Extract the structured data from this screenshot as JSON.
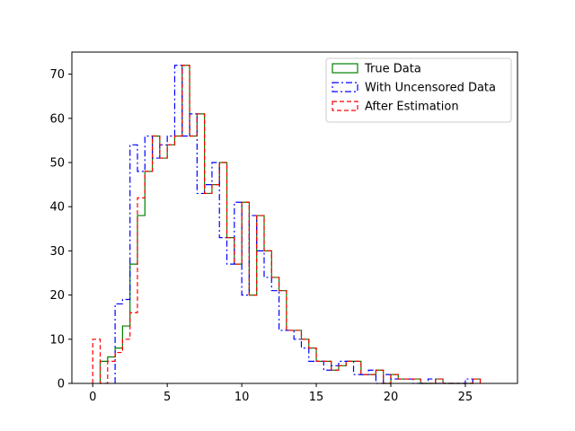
{
  "chart_data": {
    "type": "histogram",
    "title": "",
    "xlabel": "",
    "ylabel": "",
    "xlim": [
      -1.4,
      28.5
    ],
    "ylim": [
      0,
      75
    ],
    "xticks": [
      0,
      5,
      10,
      15,
      20,
      25
    ],
    "yticks": [
      0,
      10,
      20,
      30,
      40,
      50,
      60,
      70
    ],
    "grid": false,
    "legend_position": "top-right",
    "bin_start": 0.0,
    "bin_width": 0.5,
    "series": [
      {
        "name": "True Data",
        "color": "#008000",
        "dash": "solid",
        "start_bin": 1,
        "values": [
          5,
          6,
          8,
          13,
          27,
          38,
          48,
          56,
          51,
          54,
          56,
          72,
          56,
          61,
          43,
          45,
          50,
          33,
          27,
          41,
          20,
          38,
          30,
          24,
          21,
          12,
          12,
          10,
          8,
          5,
          5,
          3,
          4,
          5,
          5,
          2,
          2,
          3,
          0,
          2,
          1,
          1,
          1,
          0,
          0,
          1,
          0,
          0,
          0,
          0,
          1
        ]
      },
      {
        "name": "With Uncensored Data",
        "color": "#0000ff",
        "dash": "dashdot",
        "start_bin": 3,
        "values": [
          18,
          19,
          54,
          48,
          56,
          51,
          54,
          56,
          72,
          56,
          61,
          43,
          45,
          50,
          33,
          27,
          41,
          20,
          38,
          30,
          24,
          21,
          12,
          12,
          10,
          8,
          5,
          5,
          3,
          4,
          5,
          5,
          2,
          2,
          3,
          0,
          2,
          1,
          1,
          1,
          0,
          0,
          1,
          0,
          0,
          0,
          0,
          1
        ]
      },
      {
        "name": "After Estimation",
        "color": "#ff0000",
        "dash": "dashed",
        "start_bin": 0,
        "values": [
          10,
          0,
          5,
          7,
          10,
          16,
          42,
          48,
          56,
          51,
          54,
          56,
          72,
          56,
          61,
          43,
          45,
          50,
          33,
          27,
          41,
          20,
          38,
          30,
          24,
          21,
          12,
          12,
          10,
          8,
          5,
          5,
          3,
          4,
          5,
          5,
          2,
          2,
          3,
          0,
          2,
          1,
          1,
          1,
          0,
          0,
          1,
          0,
          0,
          0,
          0,
          1
        ]
      }
    ]
  }
}
